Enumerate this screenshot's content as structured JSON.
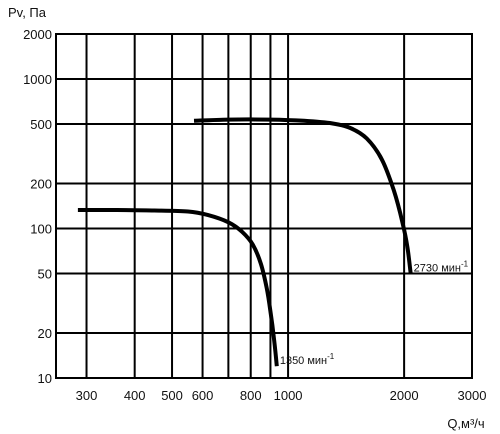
{
  "chart_data": {
    "type": "line",
    "title": "",
    "ylabel": "Pv, Па",
    "xlabel": "Q,м³/ч",
    "x_scale": "log",
    "y_scale": "log",
    "xlim": [
      250,
      3000
    ],
    "ylim": [
      10,
      2000
    ],
    "grid": true,
    "x_ticks": [
      300,
      400,
      500,
      600,
      800,
      1000,
      2000,
      3000
    ],
    "x_gridlines": [
      300,
      400,
      500,
      600,
      700,
      800,
      900,
      1000,
      2000,
      3000
    ],
    "y_ticks": [
      10,
      20,
      50,
      100,
      200,
      500,
      1000,
      2000
    ],
    "series": [
      {
        "name": "1350 мин-1",
        "label_text": "1350 мин",
        "label_sup": "-1",
        "color": "#000000",
        "points": [
          [
            285,
            133
          ],
          [
            350,
            133
          ],
          [
            450,
            132
          ],
          [
            550,
            130
          ],
          [
            620,
            123
          ],
          [
            700,
            110
          ],
          [
            760,
            95
          ],
          [
            810,
            78
          ],
          [
            850,
            58
          ],
          [
            880,
            40
          ],
          [
            900,
            28
          ],
          [
            920,
            18
          ],
          [
            935,
            12
          ]
        ]
      },
      {
        "name": "2730 мин-1",
        "label_text": "2730 мин",
        "label_sup": "-1",
        "color": "#000000",
        "points": [
          [
            570,
            525
          ],
          [
            700,
            535
          ],
          [
            900,
            535
          ],
          [
            1100,
            525
          ],
          [
            1300,
            505
          ],
          [
            1450,
            470
          ],
          [
            1600,
            400
          ],
          [
            1750,
            290
          ],
          [
            1880,
            180
          ],
          [
            1980,
            110
          ],
          [
            2040,
            75
          ],
          [
            2080,
            50
          ]
        ]
      }
    ]
  }
}
